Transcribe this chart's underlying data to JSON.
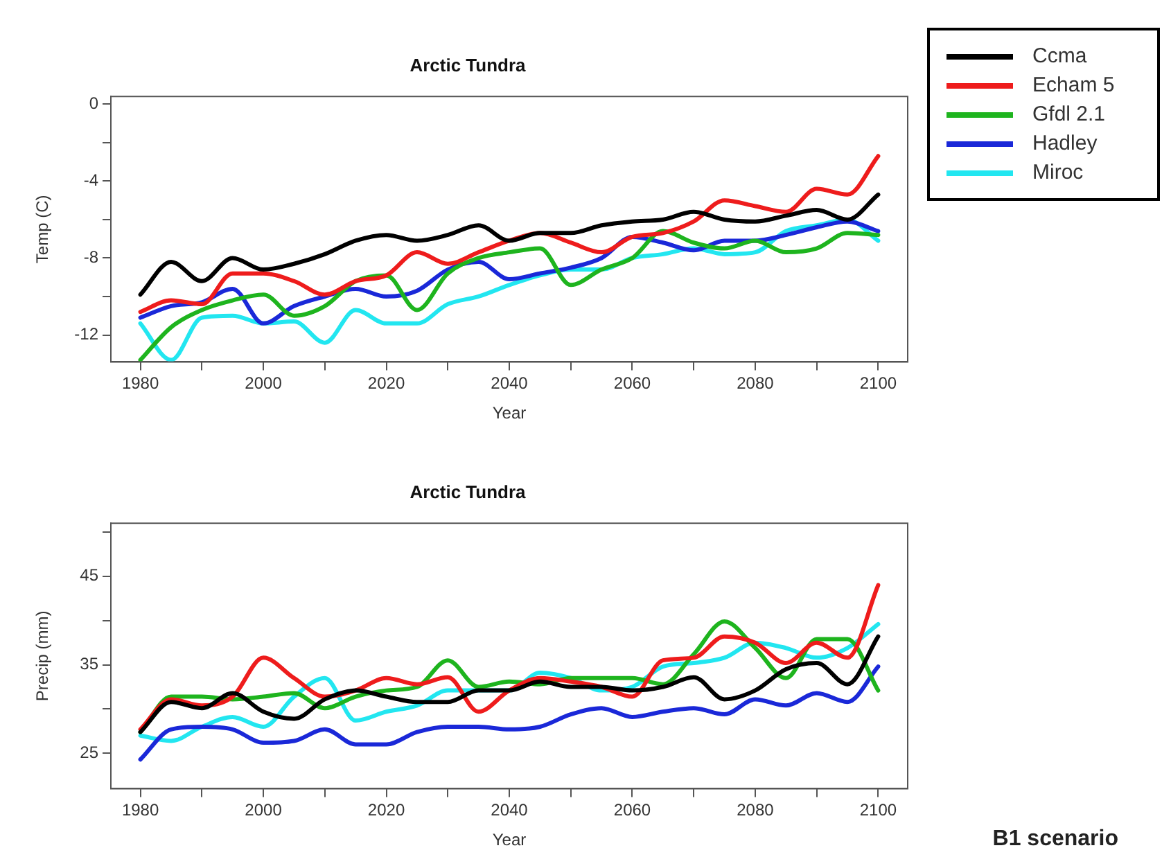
{
  "chart_data": [
    {
      "type": "line",
      "title": "Arctic Tundra",
      "xlabel": "Year",
      "ylabel": "Temp (C)",
      "legend": "top right",
      "grid": false,
      "x": [
        1980,
        1985,
        1990,
        1995,
        2000,
        2005,
        2010,
        2015,
        2020,
        2025,
        2030,
        2035,
        2040,
        2045,
        2050,
        2055,
        2060,
        2065,
        2070,
        2075,
        2080,
        2085,
        2090,
        2095,
        2100
      ],
      "xlim": [
        1975.2,
        2104.8
      ],
      "xticks": [
        1980,
        {
          "value": 1990,
          "label": null
        },
        2000,
        {
          "value": 2010,
          "label": null
        },
        2020,
        {
          "value": 2030,
          "label": null
        },
        2040,
        {
          "value": 2050,
          "label": null
        },
        2060,
        {
          "value": 2070,
          "label": null
        },
        2080,
        {
          "value": 2090,
          "label": null
        },
        2100
      ],
      "ylim": [
        -13.4,
        0.4
      ],
      "yticks": [
        {
          "value": -12,
          "label": "-12"
        },
        {
          "value": -10,
          "label": null
        },
        {
          "value": -8,
          "label": "-8"
        },
        {
          "value": -6,
          "label": null
        },
        {
          "value": -4,
          "label": "-4"
        },
        {
          "value": -2,
          "label": null
        },
        0
      ],
      "series": [
        {
          "name": "Ccma",
          "color": "#000000",
          "values": [
            -9.9,
            -8.2,
            -9.2,
            -8.0,
            -8.6,
            -8.3,
            -7.8,
            -7.1,
            -6.8,
            -7.1,
            -6.8,
            -6.3,
            -7.1,
            -6.7,
            -6.7,
            -6.3,
            -6.1,
            -6.0,
            -5.6,
            -6.0,
            -6.1,
            -5.8,
            -5.5,
            -6.0,
            -4.7
          ]
        },
        {
          "name": "Echam 5",
          "color": "#ee1c1c",
          "values": [
            -10.8,
            -10.2,
            -10.4,
            -8.8,
            -8.8,
            -9.2,
            -9.9,
            -9.2,
            -8.9,
            -7.7,
            -8.3,
            -7.7,
            -7.1,
            -6.7,
            -7.2,
            -7.7,
            -6.9,
            -6.7,
            -6.1,
            -5.0,
            -5.3,
            -5.6,
            -4.4,
            -4.7,
            -2.7
          ]
        },
        {
          "name": "Gfdl 2.1",
          "color": "#1eb41e",
          "values": [
            -13.3,
            -11.6,
            -10.7,
            -10.2,
            -9.9,
            -11.0,
            -10.5,
            -9.2,
            -8.9,
            -10.7,
            -8.8,
            -8.0,
            -7.7,
            -7.5,
            -9.4,
            -8.6,
            -8.0,
            -6.6,
            -7.2,
            -7.5,
            -7.1,
            -7.7,
            -7.5,
            -6.7,
            -6.8
          ]
        },
        {
          "name": "Hadley",
          "color": "#1a28d8",
          "values": [
            -11.1,
            -10.5,
            -10.3,
            -9.6,
            -11.4,
            -10.5,
            -10.0,
            -9.6,
            -10.0,
            -9.7,
            -8.6,
            -8.2,
            -9.1,
            -8.8,
            -8.5,
            -8.0,
            -6.9,
            -7.2,
            -7.6,
            -7.1,
            -7.1,
            -6.8,
            -6.4,
            -6.1,
            -6.6
          ]
        },
        {
          "name": "Miroc",
          "color": "#22e6f0",
          "values": [
            -11.4,
            -13.3,
            -11.1,
            -11.0,
            -11.4,
            -11.3,
            -12.4,
            -10.7,
            -11.4,
            -11.4,
            -10.4,
            -10.0,
            -9.4,
            -8.9,
            -8.6,
            -8.6,
            -8.0,
            -7.8,
            -7.5,
            -7.8,
            -7.7,
            -6.6,
            -6.3,
            -6.0,
            -7.1
          ]
        }
      ]
    },
    {
      "type": "line",
      "title": "Arctic Tundra",
      "xlabel": "Year",
      "ylabel": "Precip (mm)",
      "grid": false,
      "annotations": [
        "B1 scenario"
      ],
      "x": [
        1980,
        1985,
        1990,
        1995,
        2000,
        2005,
        2010,
        2015,
        2020,
        2025,
        2030,
        2035,
        2040,
        2045,
        2050,
        2055,
        2060,
        2065,
        2070,
        2075,
        2080,
        2085,
        2090,
        2095,
        2100
      ],
      "xlim": [
        1975.2,
        2104.8
      ],
      "xticks": [
        1980,
        {
          "value": 1990,
          "label": null
        },
        2000,
        {
          "value": 2010,
          "label": null
        },
        2020,
        {
          "value": 2030,
          "label": null
        },
        2040,
        {
          "value": 2050,
          "label": null
        },
        2060,
        {
          "value": 2070,
          "label": null
        },
        2080,
        {
          "value": 2090,
          "label": null
        },
        2100
      ],
      "ylim": [
        21,
        51
      ],
      "yticks": [
        25,
        {
          "value": 30,
          "label": null
        },
        35,
        {
          "value": 40,
          "label": null
        },
        45,
        {
          "value": 50,
          "label": null
        }
      ],
      "series": [
        {
          "color": "#000000",
          "values": [
            27.4,
            30.8,
            30.1,
            31.8,
            29.7,
            28.9,
            31.1,
            32.1,
            31.4,
            30.8,
            30.8,
            32.1,
            32.1,
            33.1,
            32.5,
            32.5,
            32.1,
            32.5,
            33.6,
            31.1,
            32.1,
            34.5,
            35.2,
            32.8,
            38.2
          ]
        },
        {
          "color": "#ee1c1c",
          "values": [
            27.7,
            31.1,
            30.4,
            31.4,
            35.8,
            33.5,
            31.4,
            32.1,
            33.5,
            32.8,
            33.6,
            29.7,
            32.1,
            33.5,
            33.1,
            32.5,
            31.4,
            35.5,
            35.8,
            38.2,
            37.5,
            35.2,
            37.5,
            35.8,
            44.0
          ]
        },
        {
          "color": "#1eb41e",
          "values": [
            27.4,
            31.4,
            31.4,
            31.1,
            31.4,
            31.8,
            30.1,
            31.4,
            32.1,
            32.5,
            35.5,
            32.5,
            33.1,
            32.8,
            33.5,
            33.5,
            33.5,
            32.8,
            36.2,
            39.9,
            36.9,
            33.5,
            37.9,
            37.9,
            32.1
          ]
        },
        {
          "color": "#1a28d8",
          "values": [
            24.3,
            27.7,
            28.0,
            27.7,
            26.2,
            26.4,
            27.7,
            26.0,
            26.0,
            27.4,
            28.0,
            28.0,
            27.7,
            28.0,
            29.4,
            30.1,
            29.1,
            29.7,
            30.1,
            29.4,
            31.1,
            30.4,
            31.8,
            30.8,
            34.8
          ]
        },
        {
          "color": "#22e6f0",
          "values": [
            27.0,
            26.4,
            28.0,
            29.1,
            28.0,
            31.4,
            33.5,
            28.7,
            29.7,
            30.4,
            32.1,
            32.1,
            32.1,
            34.1,
            33.5,
            32.1,
            32.5,
            34.8,
            35.2,
            35.8,
            37.5,
            36.9,
            35.8,
            36.9,
            39.6
          ]
        }
      ]
    }
  ]
}
